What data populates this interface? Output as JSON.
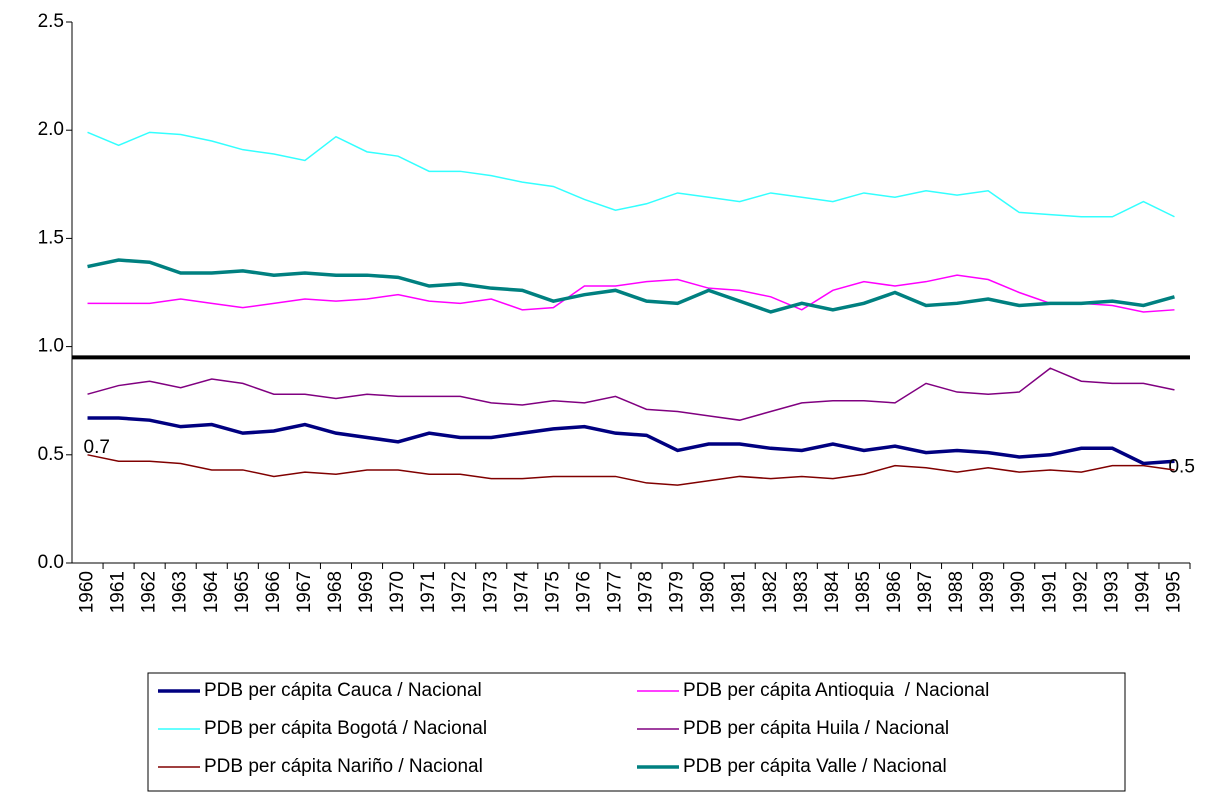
{
  "chart_data": {
    "type": "line",
    "categories": [
      "1960",
      "1961",
      "1962",
      "1963",
      "1964",
      "1965",
      "1966",
      "1967",
      "1968",
      "1969",
      "1970",
      "1971",
      "1972",
      "1973",
      "1974",
      "1975",
      "1976",
      "1977",
      "1978",
      "1979",
      "1980",
      "1981",
      "1982",
      "1983",
      "1984",
      "1985",
      "1986",
      "1987",
      "1988",
      "1989",
      "1990",
      "1991",
      "1992",
      "1993",
      "1994",
      "1995"
    ],
    "ylim": [
      0,
      2.5
    ],
    "yticks": [
      {
        "value": 0,
        "label": "0.0"
      },
      {
        "value": 0.5,
        "label": "0.5"
      },
      {
        "value": 1,
        "label": "1.0"
      },
      {
        "value": 1.5,
        "label": "1.5"
      },
      {
        "value": 2,
        "label": "2.0"
      },
      {
        "value": 2.5,
        "label": "2.5"
      }
    ],
    "hline": 0.95,
    "series": [
      {
        "name": "PDB per cápita Cauca / Nacional",
        "color": "#000080",
        "width": 3.5,
        "values": [
          0.67,
          0.67,
          0.66,
          0.63,
          0.64,
          0.6,
          0.61,
          0.64,
          0.6,
          0.58,
          0.56,
          0.6,
          0.58,
          0.58,
          0.6,
          0.62,
          0.63,
          0.6,
          0.59,
          0.52,
          0.55,
          0.55,
          0.53,
          0.52,
          0.55,
          0.52,
          0.54,
          0.51,
          0.52,
          0.51,
          0.49,
          0.5,
          0.53,
          0.53,
          0.46,
          0.47
        ],
        "value_labels": {
          "0": "0.7",
          "35": "0.5"
        }
      },
      {
        "name": "PDB per cápita Antioquia  / Nacional",
        "color": "#ff00ff",
        "width": 1.5,
        "values": [
          1.2,
          1.2,
          1.2,
          1.22,
          1.2,
          1.18,
          1.2,
          1.22,
          1.21,
          1.22,
          1.24,
          1.21,
          1.2,
          1.22,
          1.17,
          1.18,
          1.28,
          1.28,
          1.3,
          1.31,
          1.27,
          1.26,
          1.23,
          1.17,
          1.26,
          1.3,
          1.28,
          1.3,
          1.33,
          1.31,
          1.25,
          1.2,
          1.2,
          1.19,
          1.16,
          1.17
        ]
      },
      {
        "name": "PDB per cápita Bogotá / Nacional",
        "color": "#33ffff",
        "width": 1.5,
        "values": [
          1.99,
          1.93,
          1.99,
          1.98,
          1.95,
          1.91,
          1.89,
          1.86,
          1.97,
          1.9,
          1.88,
          1.81,
          1.81,
          1.79,
          1.76,
          1.74,
          1.68,
          1.63,
          1.66,
          1.71,
          1.69,
          1.67,
          1.71,
          1.69,
          1.67,
          1.71,
          1.69,
          1.72,
          1.7,
          1.72,
          1.62,
          1.61,
          1.6,
          1.6,
          1.67,
          1.6
        ]
      },
      {
        "name": "PDB per cápita Huila / Nacional",
        "color": "#800080",
        "width": 1.5,
        "values": [
          0.78,
          0.82,
          0.84,
          0.81,
          0.85,
          0.83,
          0.78,
          0.78,
          0.76,
          0.78,
          0.77,
          0.77,
          0.77,
          0.74,
          0.73,
          0.75,
          0.74,
          0.77,
          0.71,
          0.7,
          0.68,
          0.66,
          0.7,
          0.74,
          0.75,
          0.75,
          0.74,
          0.83,
          0.79,
          0.78,
          0.79,
          0.9,
          0.84,
          0.83,
          0.83,
          0.8
        ]
      },
      {
        "name": "PDB per cápita Nariño / Nacional",
        "color": "#800000",
        "width": 1.5,
        "values": [
          0.5,
          0.47,
          0.47,
          0.46,
          0.43,
          0.43,
          0.4,
          0.42,
          0.41,
          0.43,
          0.43,
          0.41,
          0.41,
          0.39,
          0.39,
          0.4,
          0.4,
          0.4,
          0.37,
          0.36,
          0.38,
          0.4,
          0.39,
          0.4,
          0.39,
          0.41,
          0.45,
          0.44,
          0.42,
          0.44,
          0.42,
          0.43,
          0.42,
          0.45,
          0.45,
          0.43
        ]
      },
      {
        "name": "PDB per cápita Valle / Nacional",
        "color": "#008080",
        "width": 3.5,
        "values": [
          1.37,
          1.4,
          1.39,
          1.34,
          1.34,
          1.35,
          1.33,
          1.34,
          1.33,
          1.33,
          1.32,
          1.28,
          1.29,
          1.27,
          1.26,
          1.21,
          1.24,
          1.26,
          1.21,
          1.2,
          1.26,
          1.21,
          1.16,
          1.2,
          1.17,
          1.2,
          1.25,
          1.19,
          1.2,
          1.22,
          1.19,
          1.2,
          1.2,
          1.21,
          1.19,
          1.23
        ]
      }
    ]
  }
}
